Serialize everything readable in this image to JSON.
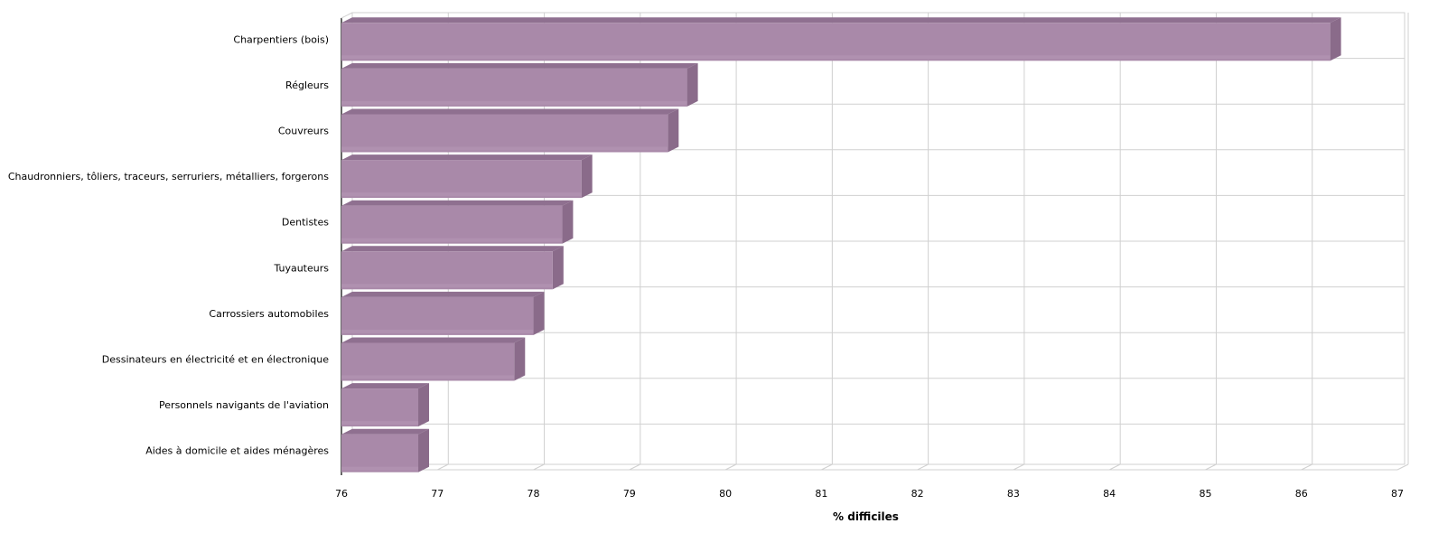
{
  "chart_data": {
    "type": "bar",
    "orientation": "horizontal",
    "style": "3d",
    "categories": [
      "Charpentiers (bois)",
      "Régleurs",
      "Couvreurs",
      "Chaudronniers, tôliers, traceurs, serruriers, métalliers, forgerons",
      "Dentistes",
      "Tuyauteurs",
      "Carrossiers automobiles",
      "Dessinateurs en électricité et en électronique",
      "Personnels navigants de l'aviation",
      "Aides à domicile et aides ménagères"
    ],
    "values": [
      86.3,
      79.6,
      79.4,
      78.5,
      78.3,
      78.2,
      78.0,
      77.8,
      76.8,
      76.8
    ],
    "xlabel": "% difficiles",
    "ylabel": "",
    "xlim": [
      76,
      87
    ],
    "ticks": [
      "76",
      "77",
      "78",
      "79",
      "80",
      "81",
      "82",
      "83",
      "84",
      "85",
      "86",
      "87"
    ],
    "grid": true,
    "legend": "none",
    "colors": {
      "bar_front": "#a989a9",
      "bar_top": "#8f7090",
      "bar_side": "#8a6b8a",
      "bar_highlight": "#b696b6",
      "grid": "#d0d0d0"
    }
  }
}
